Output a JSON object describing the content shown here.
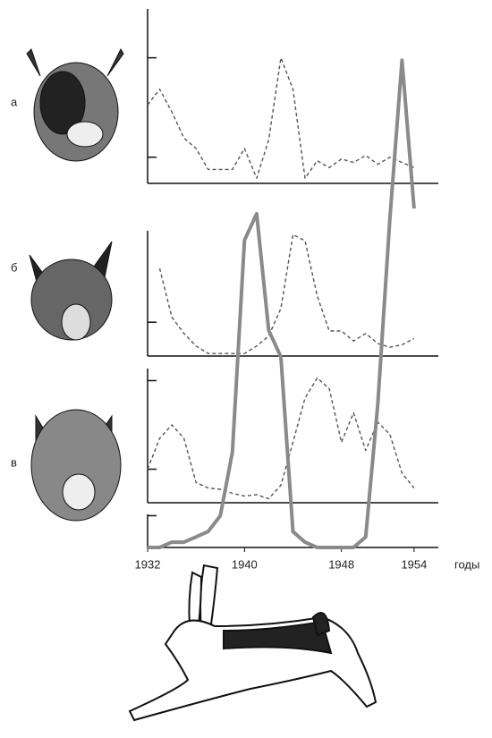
{
  "chart_data": [
    {
      "type": "line",
      "label": "а",
      "line_style": "dashed",
      "color": "#555555",
      "x": [
        1932,
        1933,
        1934,
        1935,
        1936,
        1937,
        1938,
        1939,
        1940,
        1941,
        1942,
        1943,
        1944,
        1945,
        1946,
        1947,
        1948,
        1949,
        1950,
        1951,
        1952,
        1953,
        1954
      ],
      "values": [
        45,
        54,
        41,
        26,
        20,
        8,
        8,
        8,
        20,
        3,
        25,
        72,
        54,
        3,
        13,
        9,
        14,
        12,
        16,
        11,
        15,
        12,
        9
      ],
      "xlim": [
        1932,
        1956
      ],
      "ylim": [
        0,
        100
      ],
      "yticks": [
        15,
        72
      ]
    },
    {
      "type": "line",
      "label": "б",
      "line_style": "dashed",
      "color": "#555555",
      "x": [
        1932,
        1933,
        1934,
        1935,
        1936,
        1937,
        1938,
        1939,
        1940,
        1941,
        1942,
        1943,
        1944,
        1945,
        1946,
        1947,
        1948,
        1949,
        1950,
        1951,
        1952,
        1953,
        1954
      ],
      "values": [
        null,
        70,
        31,
        18,
        8,
        2,
        2,
        2,
        2,
        8,
        16,
        38,
        97,
        92,
        48,
        20,
        20,
        12,
        18,
        10,
        7,
        9,
        14
      ],
      "xlim": [
        1932,
        1956
      ],
      "ylim": [
        0,
        100
      ],
      "yticks": [
        27
      ]
    },
    {
      "type": "line",
      "label": "в",
      "line_style": "dashed",
      "color": "#555555",
      "x": [
        1932,
        1933,
        1934,
        1935,
        1936,
        1937,
        1938,
        1939,
        1940,
        1941,
        1942,
        1943,
        1944,
        1945,
        1946,
        1947,
        1948,
        1949,
        1950,
        1951,
        1952,
        1953,
        1954
      ],
      "values": [
        25,
        48,
        58,
        48,
        15,
        11,
        10,
        7,
        5,
        6,
        3,
        13,
        45,
        78,
        93,
        85,
        45,
        67,
        39,
        60,
        51,
        22,
        11
      ],
      "xlim": [
        1932,
        1956
      ],
      "ylim": [
        0,
        100
      ],
      "yticks": [
        25,
        91
      ]
    },
    {
      "type": "line",
      "line_style": "solid",
      "color": "#8a8a8a",
      "xlabel": "годы",
      "x": [
        1932,
        1933,
        1934,
        1935,
        1936,
        1937,
        1938,
        1939,
        1940,
        1941,
        1942,
        1943,
        1944,
        1945,
        1946,
        1947,
        1948,
        1949,
        1950,
        1951,
        1952,
        1953,
        1954
      ],
      "values": [
        0,
        0,
        1,
        1,
        2,
        3,
        6,
        18,
        58,
        63,
        41,
        36,
        3,
        1,
        0,
        0,
        0,
        0,
        2,
        27,
        62,
        92,
        64
      ],
      "xlim": [
        1932,
        1956
      ],
      "ylim": [
        0,
        100
      ],
      "yticks": [
        6
      ],
      "xticks": [
        1932,
        1940,
        1948,
        1954
      ]
    }
  ]
}
